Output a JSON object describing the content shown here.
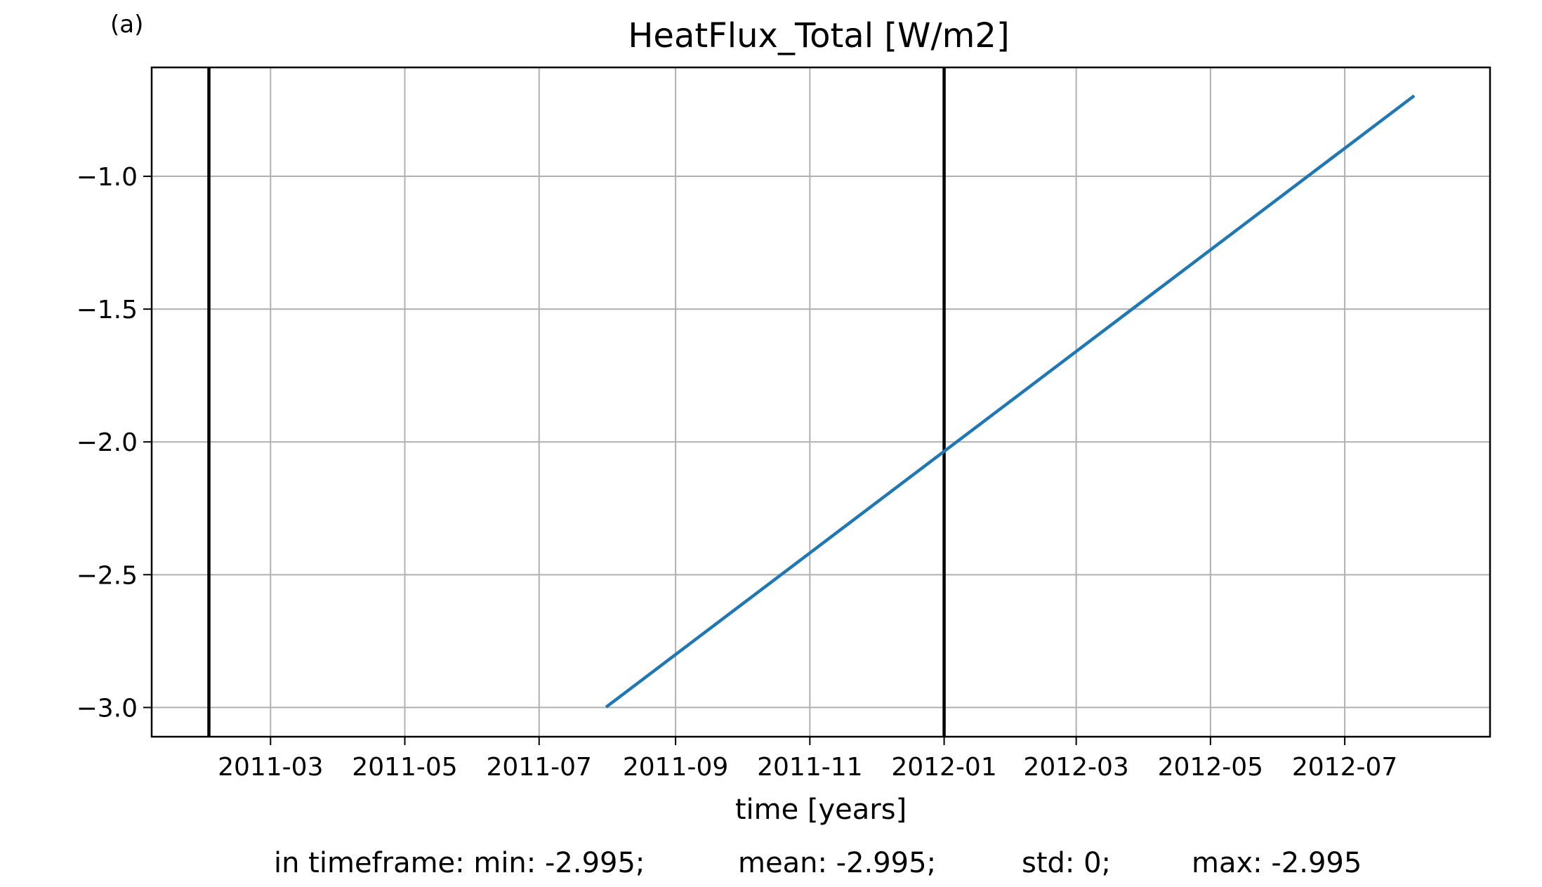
{
  "panel_label": "(a)",
  "chart_data": {
    "type": "line",
    "title": "HeatFlux_Total [W/m2]",
    "xlabel": "time [years]",
    "ylabel": "",
    "x_tick_labels": [
      "2011-03",
      "2011-05",
      "2011-07",
      "2011-09",
      "2011-11",
      "2012-01",
      "2012-03",
      "2012-05",
      "2012-07"
    ],
    "x_ticks": [
      "2011-03-01",
      "2011-05-01",
      "2011-07-01",
      "2011-09-01",
      "2011-11-01",
      "2012-01-01",
      "2012-03-01",
      "2012-05-01",
      "2012-07-01"
    ],
    "y_ticks": [
      -1.0,
      -1.5,
      -2.0,
      -2.5,
      -3.0
    ],
    "y_tick_labels": [
      "−1.0",
      "−1.5",
      "−2.0",
      "−2.5",
      "−3.0"
    ],
    "xlim": [
      "2011-01-06",
      "2012-09-05"
    ],
    "ylim": [
      -3.11,
      -0.59
    ],
    "grid": true,
    "series": [
      {
        "color": "#1f77b4",
        "points": [
          {
            "x": "2011-08-01",
            "y": -2.995
          },
          {
            "x": "2012-08-01",
            "y": -0.7
          }
        ]
      }
    ],
    "vertical_lines": [
      {
        "x": "2011-02-01",
        "color": "#000000"
      },
      {
        "x": "2012-01-01",
        "color": "#000000"
      }
    ]
  },
  "stats": {
    "min": "in timeframe: min: -2.995;",
    "mean": "mean: -2.995;",
    "std": "std: 0;",
    "max": "max: -2.995"
  }
}
